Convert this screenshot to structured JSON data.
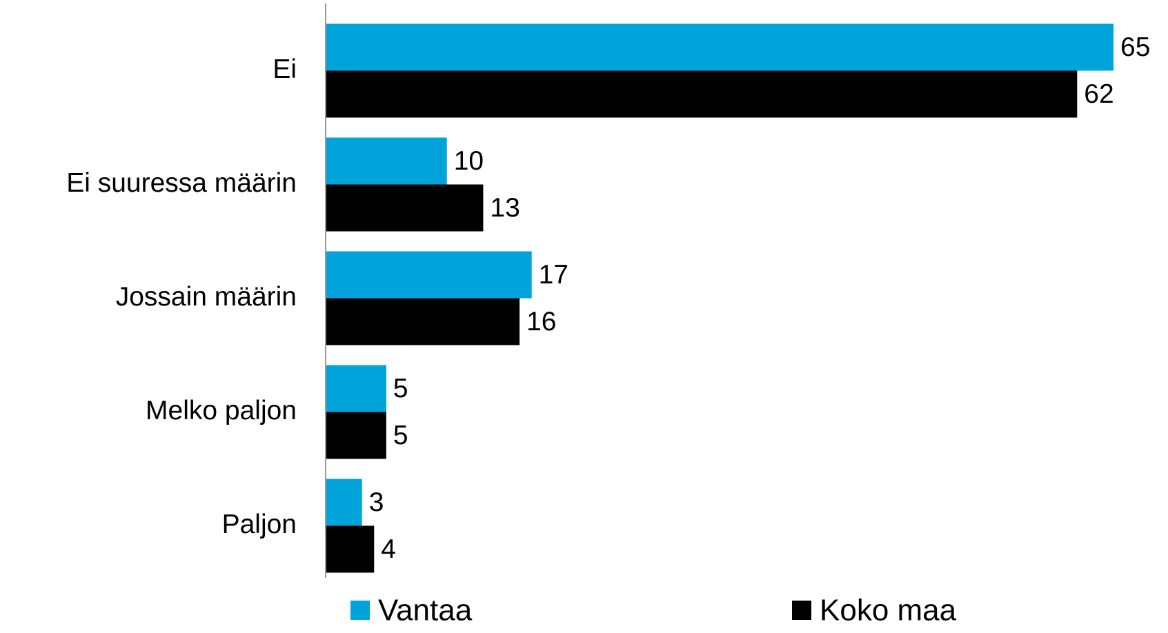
{
  "chart_data": {
    "type": "hbar",
    "categories": [
      "Ei",
      "Ei suuressa määrin",
      "Jossain määrin",
      "Melko paljon",
      "Paljon"
    ],
    "series": [
      {
        "name": "Vantaa",
        "color": "#00a3da",
        "values": [
          65,
          10,
          17,
          5,
          3
        ]
      },
      {
        "name": "Koko maa",
        "color": "#000000",
        "values": [
          62,
          13,
          16,
          5,
          4
        ]
      }
    ],
    "legend": "bottom"
  }
}
